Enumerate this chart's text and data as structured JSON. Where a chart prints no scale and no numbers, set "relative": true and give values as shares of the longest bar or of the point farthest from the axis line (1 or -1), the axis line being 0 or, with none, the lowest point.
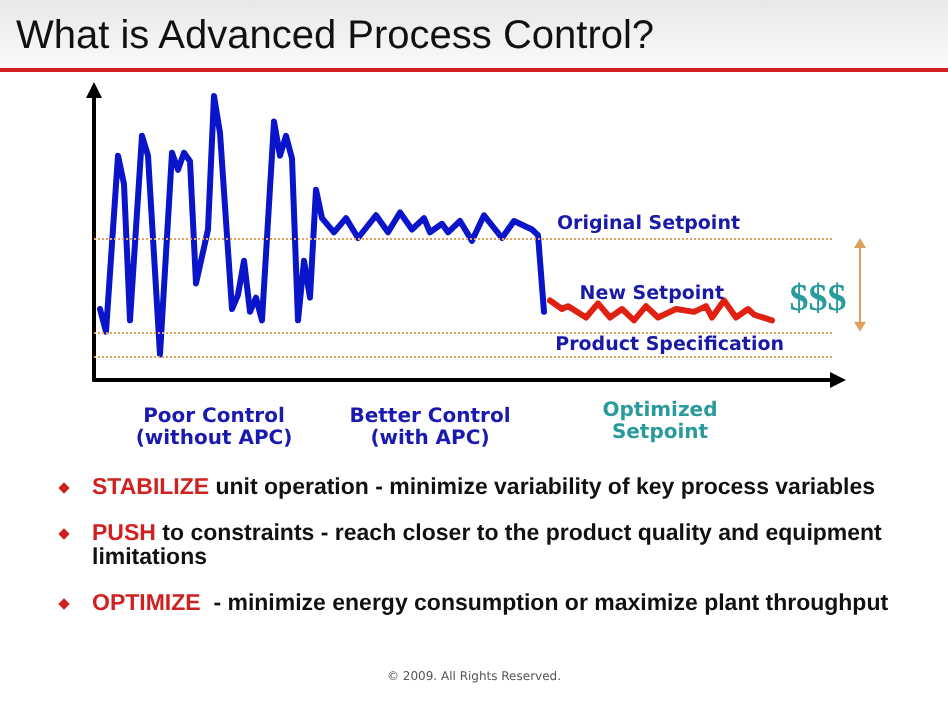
{
  "chart_data": {
    "type": "line",
    "title": "What is Advanced Process Control?",
    "relative": true,
    "categories": [
      null,
      null,
      null,
      null,
      null,
      null,
      null,
      null,
      null,
      null,
      null,
      null,
      null,
      null,
      null,
      null,
      null,
      null,
      null,
      null,
      null,
      null,
      null,
      null,
      null,
      null,
      null,
      null,
      null,
      null,
      null,
      null,
      null,
      null,
      null,
      null,
      null,
      null,
      null,
      null,
      null,
      null,
      null,
      null,
      null,
      null,
      null,
      null,
      null,
      null,
      null,
      null,
      null,
      null,
      null,
      null,
      null,
      null,
      null,
      null,
      null,
      null,
      null,
      null,
      null,
      null,
      null,
      null,
      null,
      null,
      null,
      null,
      null,
      null,
      null,
      null,
      null,
      null,
      null,
      null,
      null,
      null,
      null,
      null,
      null,
      null,
      null,
      null,
      null,
      null,
      null,
      null,
      null,
      null,
      null,
      null,
      null,
      null,
      null,
      null,
      null,
      null,
      null,
      null,
      null,
      null,
      null,
      null,
      null,
      null,
      null,
      null,
      null,
      null,
      null,
      null,
      null,
      null,
      null,
      null,
      null,
      null,
      null,
      null
    ],
    "series": [
      {
        "color": "#0a14c8",
        "values": [
          null,
          0.25,
          0.17,
          null,
          0.79,
          0.69,
          0.21,
          null,
          0.86,
          0.79,
          null,
          0.09,
          null,
          0.8,
          0.74,
          0.8,
          0.77,
          0.34,
          null,
          0.53,
          1.0,
          0.87,
          null,
          0.25,
          0.3,
          0.42,
          0.24,
          0.29,
          0.21,
          null,
          0.91,
          0.79,
          0.86,
          0.78,
          0.21,
          0.42,
          0.29,
          0.67,
          0.57,
          null,
          0.52,
          null,
          0.57,
          null,
          0.5,
          null,
          null,
          0.58,
          null,
          0.52,
          null,
          0.59,
          null,
          0.53,
          null,
          0.57,
          0.52,
          null,
          0.55,
          0.52,
          null,
          0.56,
          null,
          0.49,
          null,
          0.58,
          null,
          null,
          0.5,
          null,
          0.56,
          null,
          null,
          0.53,
          0.51,
          0.24,
          null,
          null,
          null,
          null,
          null,
          null,
          null,
          null,
          null,
          null,
          null,
          null,
          null,
          null,
          null,
          null,
          null,
          null,
          null,
          null,
          null,
          null,
          null,
          null,
          null,
          null,
          null,
          null,
          null,
          null,
          null,
          null,
          null,
          null,
          null,
          null,
          null,
          null,
          null,
          null,
          null,
          null,
          null,
          null,
          null,
          null,
          null,
          null
        ]
      },
      {
        "color": "#e02010",
        "values": [
          null,
          null,
          null,
          null,
          null,
          null,
          null,
          null,
          null,
          null,
          null,
          null,
          null,
          null,
          null,
          null,
          null,
          null,
          null,
          null,
          null,
          null,
          null,
          null,
          null,
          null,
          null,
          null,
          null,
          null,
          null,
          null,
          null,
          null,
          null,
          null,
          null,
          null,
          null,
          null,
          null,
          null,
          null,
          null,
          null,
          null,
          null,
          null,
          null,
          null,
          null,
          null,
          null,
          null,
          null,
          null,
          null,
          null,
          null,
          null,
          null,
          null,
          null,
          null,
          null,
          null,
          null,
          null,
          null,
          null,
          null,
          null,
          null,
          null,
          null,
          null,
          0.28,
          null,
          0.25,
          0.26,
          null,
          null,
          0.22,
          null,
          0.27,
          null,
          0.22,
          null,
          0.25,
          null,
          0.21,
          null,
          0.26,
          null,
          0.22,
          null,
          null,
          0.25,
          null,
          null,
          0.24,
          null,
          0.26,
          0.22,
          null,
          0.28,
          null,
          0.22,
          null,
          0.25,
          0.23,
          null,
          null,
          0.21,
          null,
          null,
          null,
          null,
          null,
          null,
          null,
          null,
          null,
          null
        ]
      }
    ],
    "ref_lines": [
      {
        "axis": "y",
        "value": 0.5,
        "label": "Original Setpoint",
        "color": "#e0a060",
        "line_style": "dotted"
      },
      {
        "axis": "y",
        "value": 0.17,
        "label": "New Setpoint",
        "color": "#e0a060",
        "line_style": "dotted"
      },
      {
        "axis": "y",
        "value": 0.08,
        "label": "Product Specification",
        "color": "#e0a060",
        "line_style": "dotted"
      }
    ],
    "annotations": [
      "Poor Control (without APC)",
      "Better Control (with APC)",
      "Optimized Setpoint",
      "$$$",
      "STABILIZE unit operation - minimize variability of key process variables",
      "PUSH to constraints - reach closer to the product quality and equipment limitations",
      "OPTIMIZE  - minimize energy consumption or maximize plant throughput",
      "© 2009. All Rights Reserved."
    ],
    "grid": false,
    "line_style": "solid"
  }
}
